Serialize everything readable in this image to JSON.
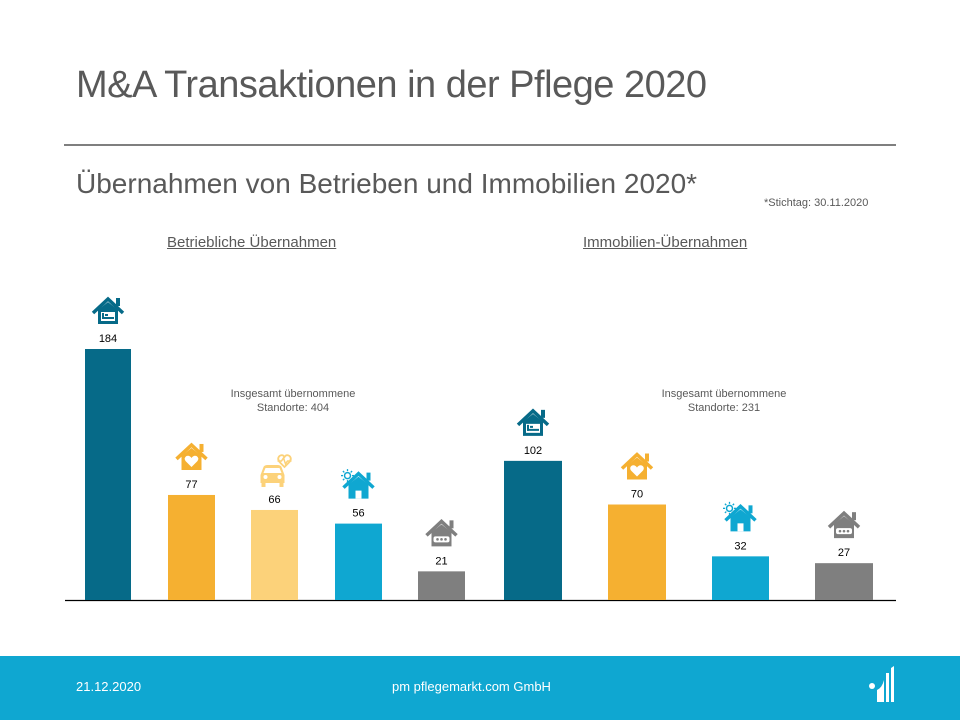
{
  "header": {
    "title": "M&A Transaktionen in der Pflege 2020",
    "subtitle": "Übernahmen von Betrieben und Immobilien 2020*",
    "footnote": "*Stichtag: 30.11.2020"
  },
  "sections": [
    {
      "label": "Betriebliche Übernahmen",
      "total_line1": "Insgesamt übernommene",
      "total_line2": "Standorte: 404"
    },
    {
      "label": "Immobilien-Übernahmen",
      "total_line1": "Insgesamt übernommene",
      "total_line2": "Standorte: 231"
    }
  ],
  "colors": {
    "dark_teal": "#066a88",
    "orange": "#f5b031",
    "light_orange": "#fcd27a",
    "blue": "#0fa7d1",
    "gray": "#7f7f7f",
    "footer": "#0fa7d1"
  },
  "chart_data": {
    "type": "bar",
    "title": "Übernahmen von Betrieben und Immobilien 2020*",
    "xlabel": "",
    "ylabel": "",
    "ylim": [
      0,
      184
    ],
    "grid": false,
    "legend": "none",
    "groups": [
      {
        "name": "Betriebliche Übernahmen",
        "total": 404,
        "bars": [
          {
            "value": 184,
            "icon": "house-bed-icon",
            "color": "#066a88"
          },
          {
            "value": 77,
            "icon": "house-heart-icon",
            "color": "#f5b031"
          },
          {
            "value": 66,
            "icon": "car-heartbeat-icon",
            "color": "#fcd27a"
          },
          {
            "value": 56,
            "icon": "house-sun-icon",
            "color": "#0fa7d1"
          },
          {
            "value": 21,
            "icon": "house-dots-icon",
            "color": "#7f7f7f"
          }
        ]
      },
      {
        "name": "Immobilien-Übernahmen",
        "total": 231,
        "bars": [
          {
            "value": 102,
            "icon": "house-bed-icon",
            "color": "#066a88"
          },
          {
            "value": 70,
            "icon": "house-heart-icon",
            "color": "#f5b031"
          },
          {
            "value": 32,
            "icon": "house-sun-icon",
            "color": "#0fa7d1"
          },
          {
            "value": 27,
            "icon": "house-dots-icon",
            "color": "#7f7f7f"
          }
        ]
      }
    ],
    "values": [
      184,
      77,
      66,
      56,
      21,
      102,
      70,
      32,
      27
    ]
  },
  "footer": {
    "date": "21.12.2020",
    "company": "pm pflegemarkt.com GmbH",
    "logo": "pflegemarkt-logo-icon"
  }
}
